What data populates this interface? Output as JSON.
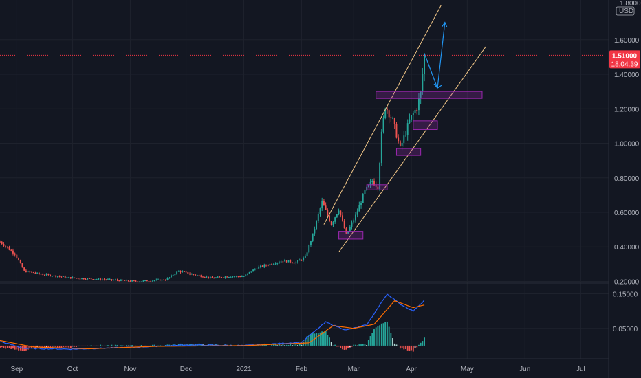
{
  "chart_data": {
    "type": "candlestick",
    "symbol_currency": "USD",
    "price_axis_top_label": "1.80000",
    "price_axis": {
      "ticks": [
        "1.60000",
        "1.40000",
        "1.20000",
        "1.00000",
        "0.80000",
        "0.60000",
        "0.40000",
        "0.20000"
      ],
      "tick_values": [
        1.6,
        1.4,
        1.2,
        1.0,
        0.8,
        0.6,
        0.4,
        0.2
      ],
      "range": [
        0.19,
        1.83
      ]
    },
    "time_axis": {
      "ticks": [
        "Sep",
        "Oct",
        "Nov",
        "Dec",
        "2021",
        "Feb",
        "Mar",
        "Apr",
        "May",
        "Jun",
        "Jul"
      ],
      "tick_dates": [
        "2020-09-01",
        "2020-10-01",
        "2020-11-01",
        "2020-12-01",
        "2021-01-01",
        "2021-02-01",
        "2021-03-01",
        "2021-04-01",
        "2021-05-01",
        "2021-06-01",
        "2021-07-01"
      ],
      "range": [
        "2020-08-23",
        "2021-07-16"
      ]
    },
    "last_price": {
      "value": 1.51,
      "label": "1.51000",
      "countdown": "18:04:39",
      "color": "#f23645"
    },
    "colors": {
      "up": "#26a69a",
      "down": "#ef5350",
      "background": "#131722",
      "channel": "#f5c989",
      "zone": "#9c27b0",
      "projection": "#2196f3"
    },
    "anchors": [
      {
        "date": "2020-08-23",
        "close": 0.43
      },
      {
        "date": "2020-08-31",
        "close": 0.36
      },
      {
        "date": "2020-09-05",
        "close": 0.26
      },
      {
        "date": "2020-09-15",
        "close": 0.24
      },
      {
        "date": "2020-10-01",
        "close": 0.22
      },
      {
        "date": "2020-10-20",
        "close": 0.21
      },
      {
        "date": "2020-11-05",
        "close": 0.2
      },
      {
        "date": "2020-11-20",
        "close": 0.21
      },
      {
        "date": "2020-11-27",
        "close": 0.26
      },
      {
        "date": "2020-12-05",
        "close": 0.24
      },
      {
        "date": "2020-12-15",
        "close": 0.22
      },
      {
        "date": "2020-12-25",
        "close": 0.23
      },
      {
        "date": "2021-01-01",
        "close": 0.23
      },
      {
        "date": "2021-01-08",
        "close": 0.28
      },
      {
        "date": "2021-01-15",
        "close": 0.3
      },
      {
        "date": "2021-01-22",
        "close": 0.32
      },
      {
        "date": "2021-01-29",
        "close": 0.31
      },
      {
        "date": "2021-02-03",
        "close": 0.34
      },
      {
        "date": "2021-02-07",
        "close": 0.47
      },
      {
        "date": "2021-02-12",
        "close": 0.66
      },
      {
        "date": "2021-02-17",
        "close": 0.53
      },
      {
        "date": "2021-02-21",
        "close": 0.62
      },
      {
        "date": "2021-02-25",
        "close": 0.47
      },
      {
        "date": "2021-03-02",
        "close": 0.58
      },
      {
        "date": "2021-03-07",
        "close": 0.72
      },
      {
        "date": "2021-03-11",
        "close": 0.78
      },
      {
        "date": "2021-03-14",
        "close": 0.75
      },
      {
        "date": "2021-03-16",
        "close": 1.05
      },
      {
        "date": "2021-03-18",
        "close": 1.22
      },
      {
        "date": "2021-03-22",
        "close": 1.13
      },
      {
        "date": "2021-03-26",
        "close": 0.97
      },
      {
        "date": "2021-03-31",
        "close": 1.13
      },
      {
        "date": "2021-04-04",
        "close": 1.21
      },
      {
        "date": "2021-04-06",
        "close": 1.29
      },
      {
        "date": "2021-04-08",
        "close": 1.51
      }
    ],
    "macd": {
      "axis_ticks": [
        "0.15000",
        "0.05000"
      ],
      "tick_values": [
        0.15,
        0.05
      ],
      "range": [
        -0.03,
        0.165
      ],
      "macd_anchors": [
        {
          "date": "2020-08-23",
          "value": 0.012
        },
        {
          "date": "2020-09-05",
          "value": -0.008
        },
        {
          "date": "2020-10-01",
          "value": -0.01
        },
        {
          "date": "2020-11-01",
          "value": -0.005
        },
        {
          "date": "2020-12-01",
          "value": 0.002
        },
        {
          "date": "2021-01-01",
          "value": 0.0
        },
        {
          "date": "2021-02-01",
          "value": 0.01
        },
        {
          "date": "2021-02-14",
          "value": 0.068
        },
        {
          "date": "2021-02-25",
          "value": 0.045
        },
        {
          "date": "2021-03-08",
          "value": 0.06
        },
        {
          "date": "2021-03-19",
          "value": 0.15
        },
        {
          "date": "2021-03-26",
          "value": 0.12
        },
        {
          "date": "2021-04-02",
          "value": 0.1
        },
        {
          "date": "2021-04-08",
          "value": 0.132
        }
      ],
      "signal_anchors": [
        {
          "date": "2020-08-23",
          "value": 0.015
        },
        {
          "date": "2020-09-10",
          "value": -0.004
        },
        {
          "date": "2020-10-10",
          "value": -0.009
        },
        {
          "date": "2020-11-15",
          "value": -0.002
        },
        {
          "date": "2021-01-01",
          "value": 0.0
        },
        {
          "date": "2021-02-05",
          "value": 0.008
        },
        {
          "date": "2021-02-18",
          "value": 0.058
        },
        {
          "date": "2021-03-01",
          "value": 0.05
        },
        {
          "date": "2021-03-12",
          "value": 0.062
        },
        {
          "date": "2021-03-23",
          "value": 0.13
        },
        {
          "date": "2021-04-02",
          "value": 0.11
        },
        {
          "date": "2021-04-08",
          "value": 0.118
        }
      ]
    },
    "channel": {
      "upper": {
        "from": {
          "date": "2021-02-13",
          "price": 0.53
        },
        "to": {
          "date": "2021-04-17",
          "price": 1.8
        }
      },
      "lower": {
        "from": {
          "date": "2021-02-21",
          "price": 0.37
        },
        "to": {
          "date": "2021-05-11",
          "price": 1.56
        }
      }
    },
    "zones": [
      {
        "from": "2021-02-21",
        "to": "2021-03-06",
        "low": 0.445,
        "high": 0.49
      },
      {
        "from": "2021-03-08",
        "to": "2021-03-19",
        "low": 0.73,
        "high": 0.76
      },
      {
        "from": "2021-03-24",
        "to": "2021-04-06",
        "low": 0.93,
        "high": 0.97
      },
      {
        "from": "2021-04-02",
        "to": "2021-04-15",
        "low": 1.08,
        "high": 1.13
      },
      {
        "from": "2021-03-13",
        "to": "2021-05-09",
        "low": 1.26,
        "high": 1.3
      }
    ],
    "projection": [
      {
        "date": "2021-04-08",
        "price": 1.52
      },
      {
        "date": "2021-04-15",
        "price": 1.32
      },
      {
        "date": "2021-04-19",
        "price": 1.7
      }
    ]
  }
}
